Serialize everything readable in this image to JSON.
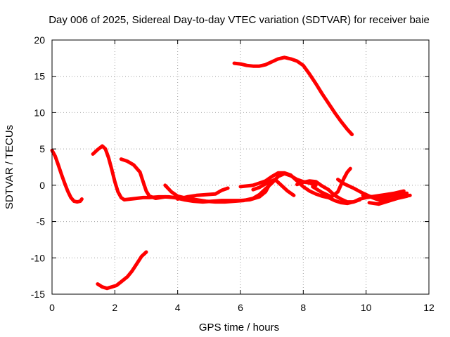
{
  "chart_data": {
    "type": "scatter",
    "title": "Day 006 of 2025, Sidereal Day-to-day VTEC variation (SDTVAR) for receiver baie",
    "xlabel": "GPS time / hours",
    "ylabel": "SDTVAR / TECUs",
    "xlim": [
      0,
      12
    ],
    "ylim": [
      -15,
      20
    ],
    "xticks": [
      0,
      2,
      4,
      6,
      8,
      10,
      12
    ],
    "yticks": [
      -15,
      -10,
      -5,
      0,
      5,
      10,
      15,
      20
    ],
    "xtick_labels": [
      "0",
      "2",
      "4",
      "6",
      "8",
      "10",
      "12"
    ],
    "ytick_labels": [
      "-15",
      "-10",
      "-5",
      "0",
      "5",
      "10",
      "15",
      "20"
    ],
    "grid": true,
    "marker": "plus",
    "color": "#ff0000",
    "series": [
      {
        "name": "arc-1",
        "points": [
          [
            0.0,
            4.8
          ],
          [
            0.1,
            4.0
          ],
          [
            0.2,
            2.8
          ],
          [
            0.3,
            1.5
          ],
          [
            0.4,
            0.3
          ],
          [
            0.5,
            -0.8
          ],
          [
            0.6,
            -1.7
          ],
          [
            0.7,
            -2.2
          ],
          [
            0.8,
            -2.3
          ],
          [
            0.9,
            -2.2
          ],
          [
            0.95,
            -1.9
          ]
        ]
      },
      {
        "name": "arc-2",
        "points": [
          [
            1.3,
            4.3
          ],
          [
            1.45,
            4.9
          ],
          [
            1.6,
            5.4
          ],
          [
            1.7,
            5.0
          ],
          [
            1.8,
            3.8
          ],
          [
            1.9,
            2.2
          ],
          [
            2.0,
            0.5
          ],
          [
            2.1,
            -0.9
          ],
          [
            2.2,
            -1.7
          ],
          [
            2.3,
            -2.0
          ],
          [
            2.5,
            -1.9
          ],
          [
            2.7,
            -1.8
          ],
          [
            2.9,
            -1.7
          ],
          [
            3.1,
            -1.7
          ],
          [
            3.4,
            -1.6
          ],
          [
            3.7,
            -1.6
          ],
          [
            3.9,
            -1.7
          ]
        ]
      },
      {
        "name": "arc-3",
        "points": [
          [
            2.2,
            3.6
          ],
          [
            2.4,
            3.3
          ],
          [
            2.6,
            2.8
          ],
          [
            2.8,
            1.8
          ],
          [
            2.9,
            0.5
          ],
          [
            3.0,
            -0.8
          ],
          [
            3.1,
            -1.5
          ],
          [
            3.3,
            -1.8
          ],
          [
            3.6,
            -1.6
          ],
          [
            3.9,
            -1.7
          ],
          [
            4.2,
            -2.0
          ],
          [
            4.5,
            -2.2
          ],
          [
            4.8,
            -2.3
          ],
          [
            5.1,
            -2.2
          ],
          [
            5.4,
            -2.1
          ],
          [
            5.7,
            -2.1
          ],
          [
            6.0,
            -2.1
          ],
          [
            6.3,
            -2.0
          ],
          [
            6.6,
            -1.6
          ],
          [
            6.8,
            -0.9
          ],
          [
            6.9,
            -0.1
          ]
        ]
      },
      {
        "name": "arc-4",
        "points": [
          [
            3.6,
            0.0
          ],
          [
            3.8,
            -0.9
          ],
          [
            4.0,
            -1.5
          ],
          [
            4.3,
            -1.8
          ],
          [
            4.6,
            -2.0
          ],
          [
            4.9,
            -2.2
          ],
          [
            5.2,
            -2.3
          ],
          [
            5.5,
            -2.3
          ],
          [
            5.8,
            -2.2
          ],
          [
            6.1,
            -2.1
          ],
          [
            6.4,
            -1.8
          ],
          [
            6.6,
            -1.3
          ],
          [
            6.8,
            -0.5
          ],
          [
            7.0,
            0.3
          ],
          [
            7.2,
            1.2
          ],
          [
            7.4,
            1.6
          ],
          [
            7.6,
            1.3
          ],
          [
            7.8,
            0.8
          ],
          [
            8.0,
            0.5
          ],
          [
            8.2,
            0.3
          ],
          [
            8.4,
            0.0
          ]
        ]
      },
      {
        "name": "arc-5",
        "points": [
          [
            4.0,
            -1.9
          ],
          [
            4.3,
            -1.6
          ],
          [
            4.6,
            -1.4
          ],
          [
            4.9,
            -1.3
          ],
          [
            5.2,
            -1.2
          ],
          [
            5.4,
            -0.7
          ],
          [
            5.6,
            -0.4
          ]
        ]
      },
      {
        "name": "arc-6",
        "points": [
          [
            6.0,
            -0.2
          ],
          [
            6.2,
            -0.1
          ],
          [
            6.4,
            0.0
          ],
          [
            6.6,
            0.3
          ],
          [
            6.8,
            0.6
          ],
          [
            7.0,
            1.2
          ],
          [
            7.2,
            1.7
          ],
          [
            7.4,
            1.7
          ],
          [
            7.6,
            1.4
          ],
          [
            7.8,
            0.6
          ],
          [
            8.0,
            -0.2
          ],
          [
            8.2,
            -0.8
          ],
          [
            8.4,
            -1.2
          ],
          [
            8.6,
            -1.5
          ],
          [
            8.8,
            -1.7
          ],
          [
            9.0,
            -2.1
          ],
          [
            9.2,
            -2.4
          ],
          [
            9.4,
            -2.5
          ],
          [
            9.6,
            -2.3
          ],
          [
            9.8,
            -2.0
          ]
        ]
      },
      {
        "name": "arc-7",
        "points": [
          [
            6.4,
            -0.6
          ],
          [
            6.6,
            -0.3
          ],
          [
            6.8,
            0.2
          ],
          [
            7.0,
            0.6
          ],
          [
            7.1,
            0.8
          ],
          [
            7.3,
            0.0
          ],
          [
            7.5,
            -0.8
          ],
          [
            7.7,
            -1.4
          ]
        ]
      },
      {
        "name": "arc-8",
        "points": [
          [
            7.8,
            0.1
          ],
          [
            8.0,
            0.4
          ],
          [
            8.2,
            0.6
          ],
          [
            8.4,
            0.5
          ],
          [
            8.6,
            -0.1
          ],
          [
            8.8,
            -0.6
          ],
          [
            9.0,
            -1.4
          ],
          [
            9.2,
            -1.9
          ],
          [
            9.4,
            -2.3
          ],
          [
            9.6,
            -2.3
          ],
          [
            9.8,
            -1.9
          ],
          [
            10.0,
            -1.7
          ],
          [
            10.3,
            -1.5
          ],
          [
            10.6,
            -1.3
          ],
          [
            10.9,
            -1.1
          ],
          [
            11.2,
            -0.8
          ]
        ]
      },
      {
        "name": "arc-9",
        "points": [
          [
            8.3,
            -0.2
          ],
          [
            8.6,
            -1.0
          ],
          [
            8.9,
            -1.6
          ],
          [
            9.1,
            -0.9
          ],
          [
            9.3,
            1.0
          ],
          [
            9.4,
            1.8
          ],
          [
            9.5,
            2.3
          ]
        ]
      },
      {
        "name": "arc-10",
        "points": [
          [
            9.1,
            0.8
          ],
          [
            9.3,
            0.2
          ],
          [
            9.6,
            -0.4
          ],
          [
            9.9,
            -1.1
          ],
          [
            10.2,
            -1.7
          ],
          [
            10.5,
            -2.2
          ],
          [
            10.8,
            -2.0
          ],
          [
            11.1,
            -1.6
          ],
          [
            11.4,
            -1.4
          ]
        ]
      },
      {
        "name": "arc-11",
        "points": [
          [
            9.9,
            -1.4
          ],
          [
            10.2,
            -1.6
          ],
          [
            10.5,
            -1.8
          ],
          [
            10.8,
            -1.5
          ],
          [
            11.1,
            -1.2
          ],
          [
            11.3,
            -1.1
          ]
        ]
      },
      {
        "name": "arc-12",
        "points": [
          [
            10.1,
            -2.4
          ],
          [
            10.4,
            -2.6
          ],
          [
            10.7,
            -2.2
          ],
          [
            11.0,
            -1.8
          ],
          [
            11.3,
            -1.5
          ]
        ]
      },
      {
        "name": "arc-13",
        "points": [
          [
            5.8,
            16.8
          ],
          [
            6.0,
            16.7
          ],
          [
            6.2,
            16.5
          ],
          [
            6.4,
            16.4
          ],
          [
            6.6,
            16.4
          ],
          [
            6.8,
            16.6
          ],
          [
            7.0,
            17.0
          ],
          [
            7.2,
            17.4
          ],
          [
            7.4,
            17.6
          ],
          [
            7.6,
            17.4
          ],
          [
            7.8,
            17.1
          ],
          [
            8.0,
            16.5
          ],
          [
            8.2,
            15.3
          ],
          [
            8.4,
            14.0
          ],
          [
            8.6,
            12.6
          ],
          [
            8.8,
            11.3
          ],
          [
            9.0,
            10.0
          ],
          [
            9.2,
            8.8
          ],
          [
            9.4,
            7.7
          ],
          [
            9.55,
            7.0
          ]
        ]
      },
      {
        "name": "arc-14",
        "points": [
          [
            1.45,
            -13.6
          ],
          [
            1.6,
            -14.0
          ],
          [
            1.75,
            -14.2
          ],
          [
            1.9,
            -14.0
          ],
          [
            2.05,
            -13.8
          ],
          [
            2.2,
            -13.3
          ],
          [
            2.4,
            -12.6
          ],
          [
            2.55,
            -11.8
          ],
          [
            2.7,
            -10.8
          ],
          [
            2.85,
            -9.8
          ],
          [
            3.0,
            -9.2
          ]
        ]
      }
    ]
  }
}
